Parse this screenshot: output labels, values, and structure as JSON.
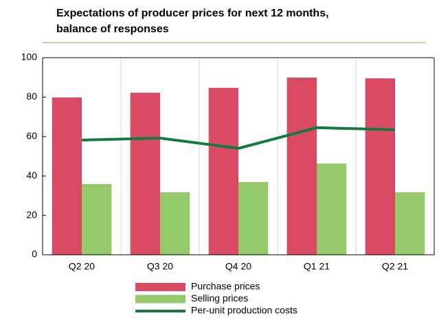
{
  "chart_data": {
    "type": "bar",
    "title": [
      "Expectations of producer prices for next 12 months,",
      "balance of responses"
    ],
    "categories": [
      "Q2 20",
      "Q3 20",
      "Q4 20",
      "Q1 21",
      "Q2 21"
    ],
    "series": [
      {
        "name": "Purchase prices",
        "color": "#da4a62",
        "type": "bar",
        "values": [
          79.8,
          82.2,
          84.7,
          89.9,
          89.5
        ]
      },
      {
        "name": "Selling prices",
        "color": "#93c96b",
        "type": "bar",
        "values": [
          35.9,
          31.7,
          36.9,
          46.3,
          31.7
        ]
      },
      {
        "name": "Per-unit production costs",
        "color": "#137a3f",
        "type": "line",
        "values": [
          58.2,
          59.2,
          54.0,
          64.5,
          63.4
        ]
      }
    ],
    "ylim": [
      0,
      100
    ],
    "yticks": [
      0,
      20,
      40,
      60,
      80,
      100
    ],
    "grid": false,
    "legend": "bottom"
  }
}
